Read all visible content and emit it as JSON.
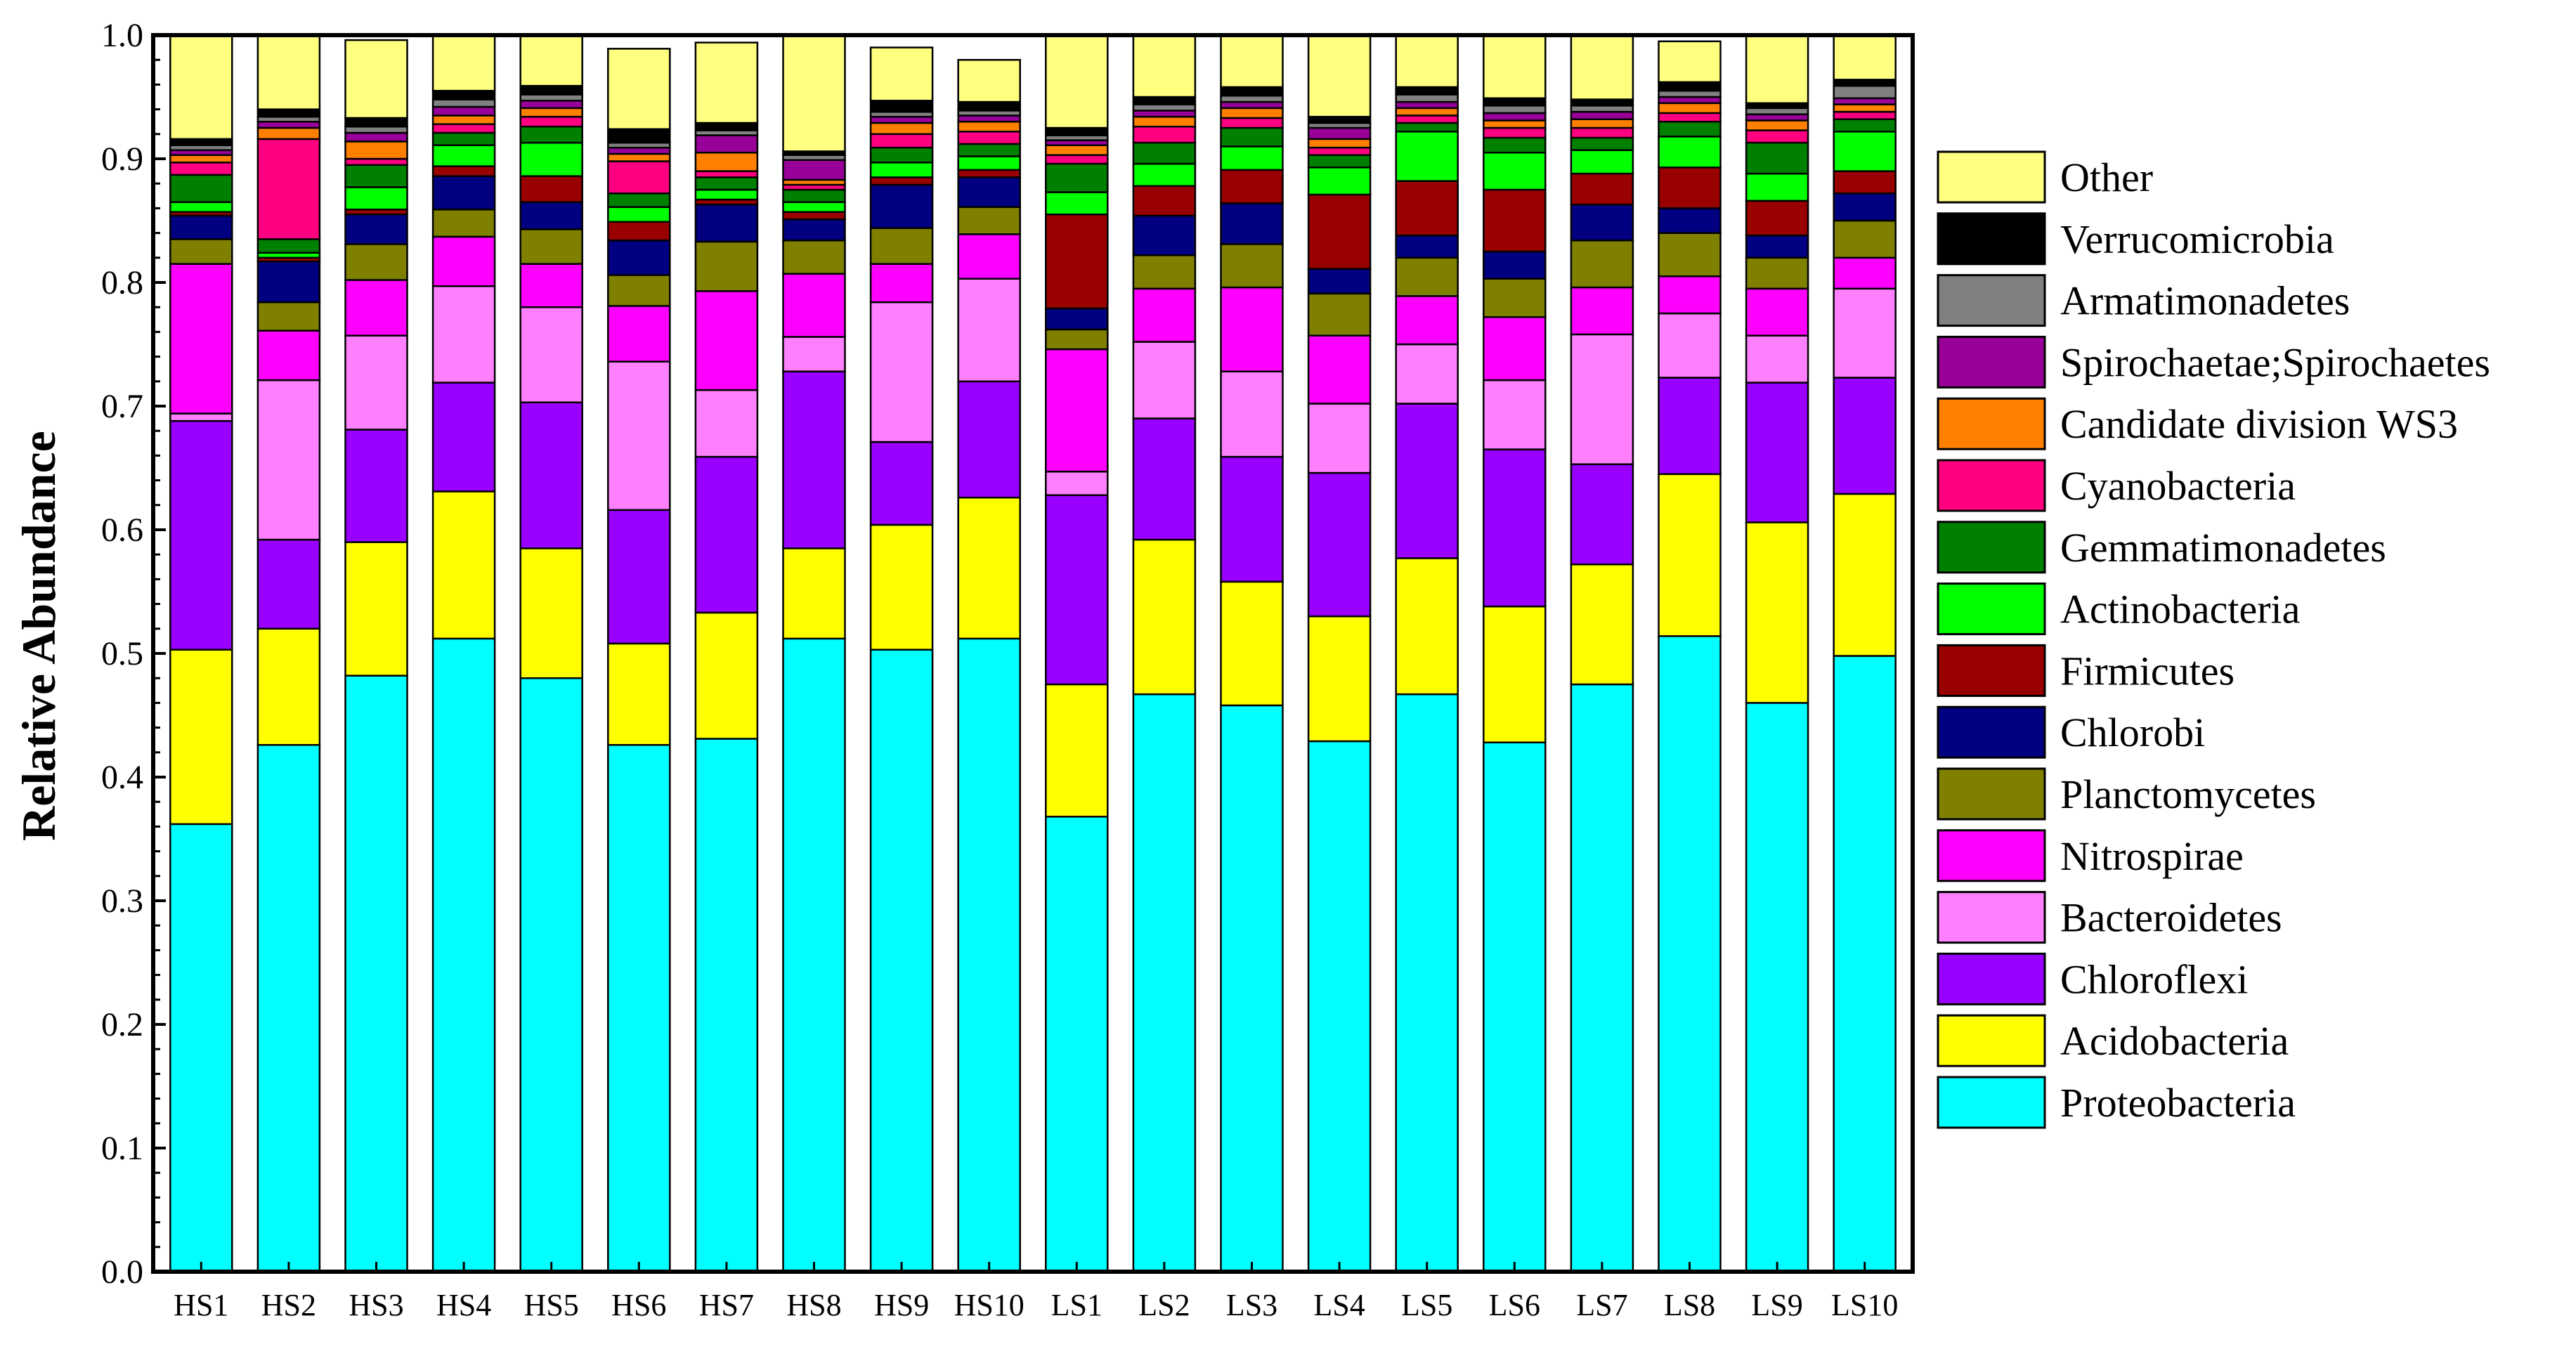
{
  "chart_data": {
    "type": "bar",
    "stacked": true,
    "title": "",
    "xlabel": "",
    "ylabel": "Relative Abundance",
    "ylim": [
      0,
      1.0
    ],
    "yticks": [
      "0.0",
      "0.1",
      "0.2",
      "0.3",
      "0.4",
      "0.5",
      "0.6",
      "0.7",
      "0.8",
      "0.9",
      "1.0"
    ],
    "legend_position": "right",
    "categories": [
      "HS1",
      "HS2",
      "HS3",
      "HS4",
      "HS5",
      "HS6",
      "HS7",
      "HS8",
      "HS9",
      "HS10",
      "LS1",
      "LS2",
      "LS3",
      "LS4",
      "LS5",
      "LS6",
      "LS7",
      "LS8",
      "LS9",
      "LS10"
    ],
    "series": [
      {
        "name": "Proteobacteria",
        "color": "#00FFFF",
        "values": [
          0.362,
          0.426,
          0.482,
          0.512,
          0.48,
          0.426,
          0.431,
          0.512,
          0.503,
          0.512,
          0.368,
          0.467,
          0.458,
          0.429,
          0.467,
          0.428,
          0.475,
          0.514,
          0.46,
          0.498
        ]
      },
      {
        "name": "Acidobacteria",
        "color": "#FFFF00",
        "values": [
          0.141,
          0.094,
          0.108,
          0.119,
          0.105,
          0.082,
          0.102,
          0.073,
          0.101,
          0.114,
          0.107,
          0.125,
          0.1,
          0.101,
          0.11,
          0.11,
          0.097,
          0.131,
          0.146,
          0.131
        ]
      },
      {
        "name": "Chloroflexi",
        "color": "#9900FF",
        "values": [
          0.185,
          0.072,
          0.091,
          0.088,
          0.118,
          0.108,
          0.126,
          0.143,
          0.067,
          0.094,
          0.153,
          0.098,
          0.101,
          0.116,
          0.125,
          0.127,
          0.081,
          0.078,
          0.113,
          0.094
        ]
      },
      {
        "name": "Bacteroidetes",
        "color": "#FF80FF",
        "values": [
          0.006,
          0.129,
          0.076,
          0.078,
          0.077,
          0.12,
          0.054,
          0.028,
          0.113,
          0.083,
          0.019,
          0.062,
          0.069,
          0.056,
          0.048,
          0.056,
          0.105,
          0.052,
          0.038,
          0.072
        ]
      },
      {
        "name": "Nitrospirae",
        "color": "#FF00FF",
        "values": [
          0.121,
          0.04,
          0.045,
          0.04,
          0.035,
          0.045,
          0.08,
          0.051,
          0.031,
          0.036,
          0.099,
          0.043,
          0.068,
          0.055,
          0.039,
          0.051,
          0.038,
          0.03,
          0.038,
          0.025
        ]
      },
      {
        "name": "Planctomycetes",
        "color": "#808000",
        "values": [
          0.02,
          0.023,
          0.029,
          0.022,
          0.028,
          0.025,
          0.04,
          0.027,
          0.029,
          0.022,
          0.016,
          0.027,
          0.035,
          0.034,
          0.031,
          0.031,
          0.038,
          0.035,
          0.025,
          0.03
        ]
      },
      {
        "name": "Chlorobi",
        "color": "#000080",
        "values": [
          0.019,
          0.033,
          0.024,
          0.027,
          0.022,
          0.028,
          0.03,
          0.017,
          0.035,
          0.024,
          0.017,
          0.032,
          0.033,
          0.02,
          0.018,
          0.022,
          0.029,
          0.02,
          0.018,
          0.022
        ]
      },
      {
        "name": "Firmicutes",
        "color": "#990000",
        "values": [
          0.003,
          0.003,
          0.004,
          0.008,
          0.021,
          0.015,
          0.004,
          0.006,
          0.006,
          0.006,
          0.076,
          0.024,
          0.027,
          0.06,
          0.044,
          0.05,
          0.025,
          0.033,
          0.028,
          0.018
        ]
      },
      {
        "name": "Actinobacteria",
        "color": "#00FF00",
        "values": [
          0.008,
          0.004,
          0.018,
          0.017,
          0.027,
          0.012,
          0.008,
          0.008,
          0.012,
          0.011,
          0.018,
          0.018,
          0.019,
          0.022,
          0.04,
          0.03,
          0.019,
          0.025,
          0.022,
          0.032
        ]
      },
      {
        "name": "Gemmatimonadetes",
        "color": "#008000",
        "values": [
          0.022,
          0.011,
          0.018,
          0.01,
          0.013,
          0.011,
          0.01,
          0.01,
          0.012,
          0.01,
          0.023,
          0.017,
          0.015,
          0.01,
          0.007,
          0.012,
          0.01,
          0.012,
          0.025,
          0.01
        ]
      },
      {
        "name": "Cyanobacteria",
        "color": "#FF0080",
        "values": [
          0.01,
          0.081,
          0.005,
          0.007,
          0.008,
          0.026,
          0.005,
          0.004,
          0.011,
          0.01,
          0.007,
          0.013,
          0.008,
          0.006,
          0.006,
          0.008,
          0.008,
          0.007,
          0.01,
          0.006
        ]
      },
      {
        "name": "Candidate division WS3",
        "color": "#FF8000",
        "values": [
          0.006,
          0.009,
          0.014,
          0.007,
          0.007,
          0.006,
          0.015,
          0.004,
          0.009,
          0.008,
          0.008,
          0.008,
          0.008,
          0.007,
          0.006,
          0.006,
          0.007,
          0.008,
          0.008,
          0.006
        ]
      },
      {
        "name": "Spirochaetae;Spirochaetes",
        "color": "#990099",
        "values": [
          0.004,
          0.005,
          0.007,
          0.007,
          0.006,
          0.005,
          0.014,
          0.016,
          0.005,
          0.005,
          0.004,
          0.005,
          0.005,
          0.009,
          0.005,
          0.006,
          0.006,
          0.005,
          0.005,
          0.005
        ]
      },
      {
        "name": "Armatimonadetes",
        "color": "#808080",
        "values": [
          0.004,
          0.004,
          0.005,
          0.006,
          0.005,
          0.004,
          0.004,
          0.004,
          0.004,
          0.004,
          0.004,
          0.005,
          0.005,
          0.004,
          0.006,
          0.006,
          0.005,
          0.005,
          0.005,
          0.01
        ]
      },
      {
        "name": "Verrucomicrobia",
        "color": "#000000",
        "values": [
          0.005,
          0.006,
          0.007,
          0.007,
          0.007,
          0.011,
          0.006,
          0.003,
          0.009,
          0.007,
          0.006,
          0.006,
          0.007,
          0.005,
          0.006,
          0.006,
          0.005,
          0.007,
          0.004,
          0.005
        ]
      },
      {
        "name": "Other",
        "color": "#FFFF80",
        "values": [
          0.084,
          0.06,
          0.063,
          0.045,
          0.04,
          0.065,
          0.065,
          0.094,
          0.043,
          0.034,
          0.075,
          0.05,
          0.042,
          0.066,
          0.042,
          0.051,
          0.052,
          0.033,
          0.055,
          0.036
        ]
      }
    ]
  }
}
